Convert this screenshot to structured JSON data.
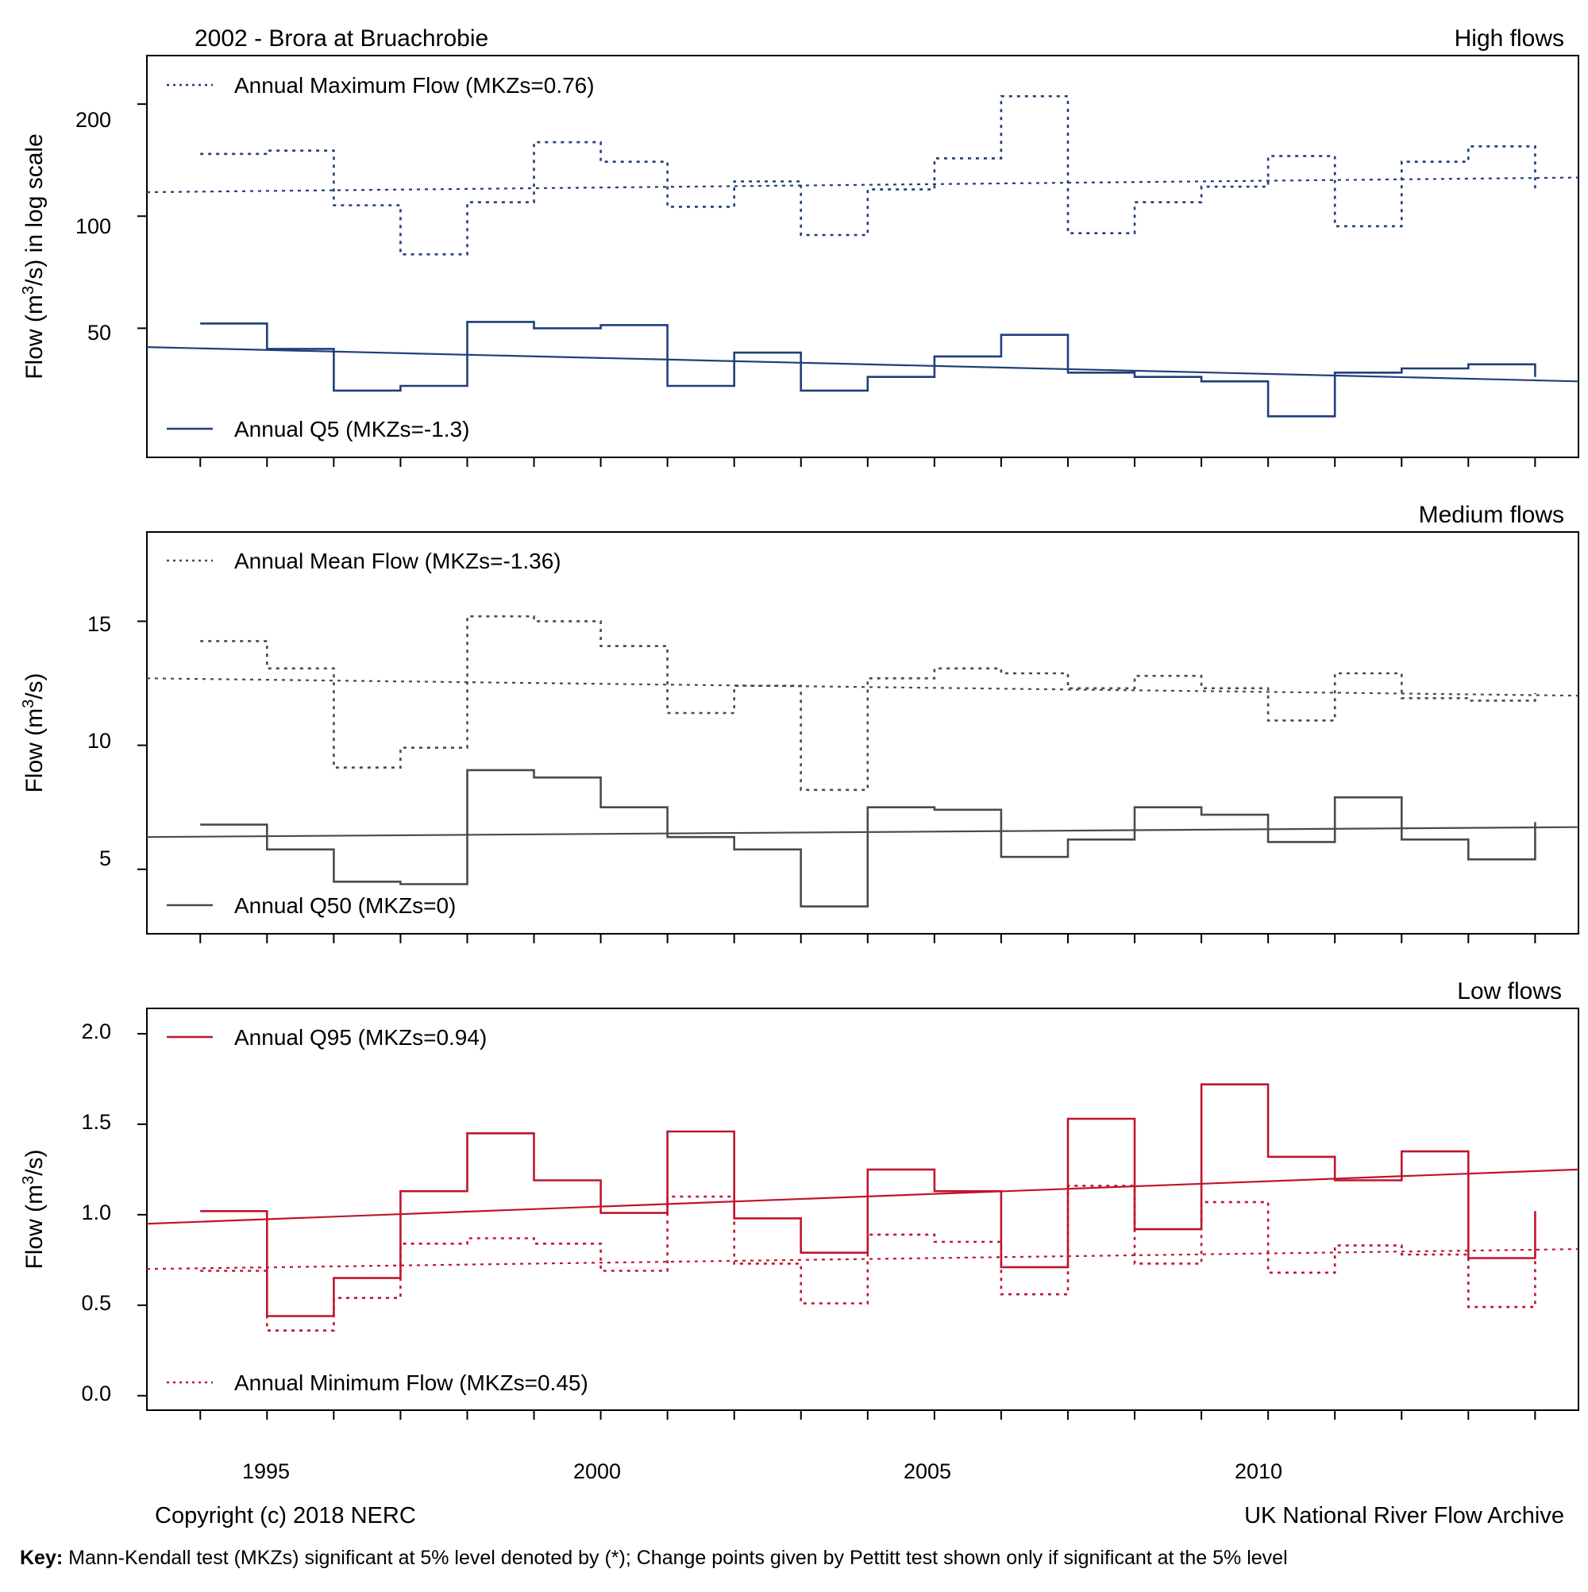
{
  "header": {
    "title": "2002 - Brora at Bruachrobie"
  },
  "footer": {
    "copyright": "Copyright (c) 2018 NERC",
    "archive": "UK National River Flow Archive",
    "key_label": "Key:",
    "key_text": " Mann-Kendall test (MKZs) significant at 5% level denoted by (*); Change points given by Pettitt test shown only if significant at the 5% level"
  },
  "colors": {
    "high": "#1f3f7a",
    "medium": "#4a4a4a",
    "low": "#c0152f",
    "frame": "#000000"
  },
  "x_axis": {
    "range": [
      1993.2,
      2014.65
    ],
    "ticks": [
      1995,
      2000,
      2005,
      2010
    ],
    "minor_ticks": [
      1994,
      1995,
      1996,
      1997,
      1998,
      1999,
      2000,
      2001,
      2002,
      2003,
      2004,
      2005,
      2006,
      2007,
      2008,
      2009,
      2010,
      2011,
      2012,
      2013,
      2014
    ]
  },
  "chart_data": [
    {
      "type": "line",
      "panel": "High flows",
      "title": "2002 - Brora at Bruachrobie",
      "ylabel": "Flow (m3/s) in log scale",
      "y_scale": "log",
      "ylim": [
        22.5,
        270
      ],
      "yticks": [
        50,
        100,
        200
      ],
      "step_years": [
        1994,
        1995,
        1996,
        1997,
        1998,
        1999,
        2000,
        2001,
        2002,
        2003,
        2004,
        2005,
        2006,
        2007,
        2008,
        2009,
        2010,
        2011,
        2012,
        2013
      ],
      "series": [
        {
          "name": "Annual Maximum Flow (MKZs=0.76)",
          "style": "dotted",
          "values": [
            147,
            150,
            107,
            79,
            109,
            158,
            140,
            106,
            124,
            89,
            118,
            143,
            210,
            90,
            109,
            120,
            145,
            94,
            140,
            154
          ],
          "end_value": 117,
          "trend": [
            116,
            127
          ]
        },
        {
          "name": "Annual Q5 (MKZs=-1.3)",
          "style": "solid",
          "values": [
            51.5,
            44,
            34,
            35,
            52,
            50,
            51,
            35,
            43,
            34,
            37,
            42,
            48,
            38,
            37,
            36,
            29,
            38,
            39,
            40
          ],
          "end_value": 37,
          "trend": [
            44.5,
            36
          ]
        }
      ]
    },
    {
      "type": "line",
      "panel": "Medium flows",
      "ylabel": "Flow (m3/s)",
      "ylim": [
        2.4,
        18.6
      ],
      "yticks": [
        5,
        10,
        15
      ],
      "step_years": [
        1994,
        1995,
        1996,
        1997,
        1998,
        1999,
        2000,
        2001,
        2002,
        2003,
        2004,
        2005,
        2006,
        2007,
        2008,
        2009,
        2010,
        2011,
        2012,
        2013
      ],
      "series": [
        {
          "name": "Annual Mean Flow (MKZs=-1.36)",
          "style": "dotted",
          "values": [
            14.2,
            13.1,
            9.1,
            9.9,
            15.2,
            15.0,
            14.0,
            11.3,
            12.4,
            8.2,
            12.7,
            13.1,
            12.9,
            12.3,
            12.8,
            12.3,
            11.0,
            12.9,
            11.9,
            11.8
          ],
          "end_value": 12.1,
          "trend": [
            12.7,
            12.0
          ]
        },
        {
          "name": "Annual Q50 (MKZs=0)",
          "style": "solid",
          "values": [
            6.8,
            5.8,
            4.5,
            4.4,
            9.0,
            8.7,
            7.5,
            6.3,
            5.8,
            3.5,
            7.5,
            7.4,
            5.5,
            6.2,
            7.5,
            7.2,
            6.1,
            7.9,
            6.2,
            5.4
          ],
          "end_value": 6.9,
          "trend": [
            6.3,
            6.7
          ]
        }
      ]
    },
    {
      "type": "line",
      "panel": "Low flows",
      "ylabel": "Flow (m3/s)",
      "ylim": [
        -0.08,
        2.14
      ],
      "yticks": [
        0.0,
        0.5,
        1.0,
        1.5,
        2.0
      ],
      "step_years": [
        1994,
        1995,
        1996,
        1997,
        1998,
        1999,
        2000,
        2001,
        2002,
        2003,
        2004,
        2005,
        2006,
        2007,
        2008,
        2009,
        2010,
        2011,
        2012,
        2013
      ],
      "series": [
        {
          "name": "Annual Q95 (MKZs=0.94)",
          "style": "solid",
          "values": [
            1.02,
            0.44,
            0.65,
            1.13,
            1.45,
            1.19,
            1.01,
            1.46,
            0.98,
            0.79,
            1.25,
            1.13,
            0.71,
            1.53,
            0.92,
            1.72,
            1.32,
            1.19,
            1.35,
            0.76
          ],
          "end_value": 1.02,
          "trend": [
            0.95,
            1.25
          ]
        },
        {
          "name": "Annual Minimum Flow (MKZs=0.45)",
          "style": "dotted",
          "values": [
            0.69,
            0.36,
            0.54,
            0.84,
            0.87,
            0.84,
            0.69,
            1.1,
            0.73,
            0.51,
            0.89,
            0.85,
            0.56,
            1.16,
            0.73,
            1.07,
            0.68,
            0.83,
            0.78,
            0.49
          ],
          "end_value": 0.8,
          "trend": [
            0.7,
            0.81
          ]
        }
      ]
    }
  ],
  "panels": [
    {
      "label": "High flows",
      "legend_top": "Annual Maximum Flow (MKZs=0.76)",
      "legend_bottom": "Annual Q5 (MKZs=-1.3)",
      "yticks_text": [
        "50",
        "100",
        "200"
      ]
    },
    {
      "label": "Medium flows",
      "legend_top": "Annual Mean Flow (MKZs=-1.36)",
      "legend_bottom": "Annual Q50 (MKZs=0)",
      "yticks_text": [
        "5",
        "10",
        "15"
      ]
    },
    {
      "label": "Low flows",
      "legend_top": "Annual Q95 (MKZs=0.94)",
      "legend_bottom": "Annual Minimum Flow (MKZs=0.45)",
      "yticks_text": [
        "0.0",
        "0.5",
        "1.0",
        "1.5",
        "2.0"
      ]
    }
  ],
  "ylabels": {
    "panel_1": {
      "pre": "Flow (m",
      "sup": "3",
      "post": "/s) in log scale"
    },
    "panel_2": {
      "pre": "Flow (m",
      "sup": "3",
      "post": "/s)"
    },
    "panel_3": {
      "pre": "Flow (m",
      "sup": "3",
      "post": "/s)"
    }
  },
  "xtick_labels": [
    "1995",
    "2000",
    "2005",
    "2010"
  ]
}
